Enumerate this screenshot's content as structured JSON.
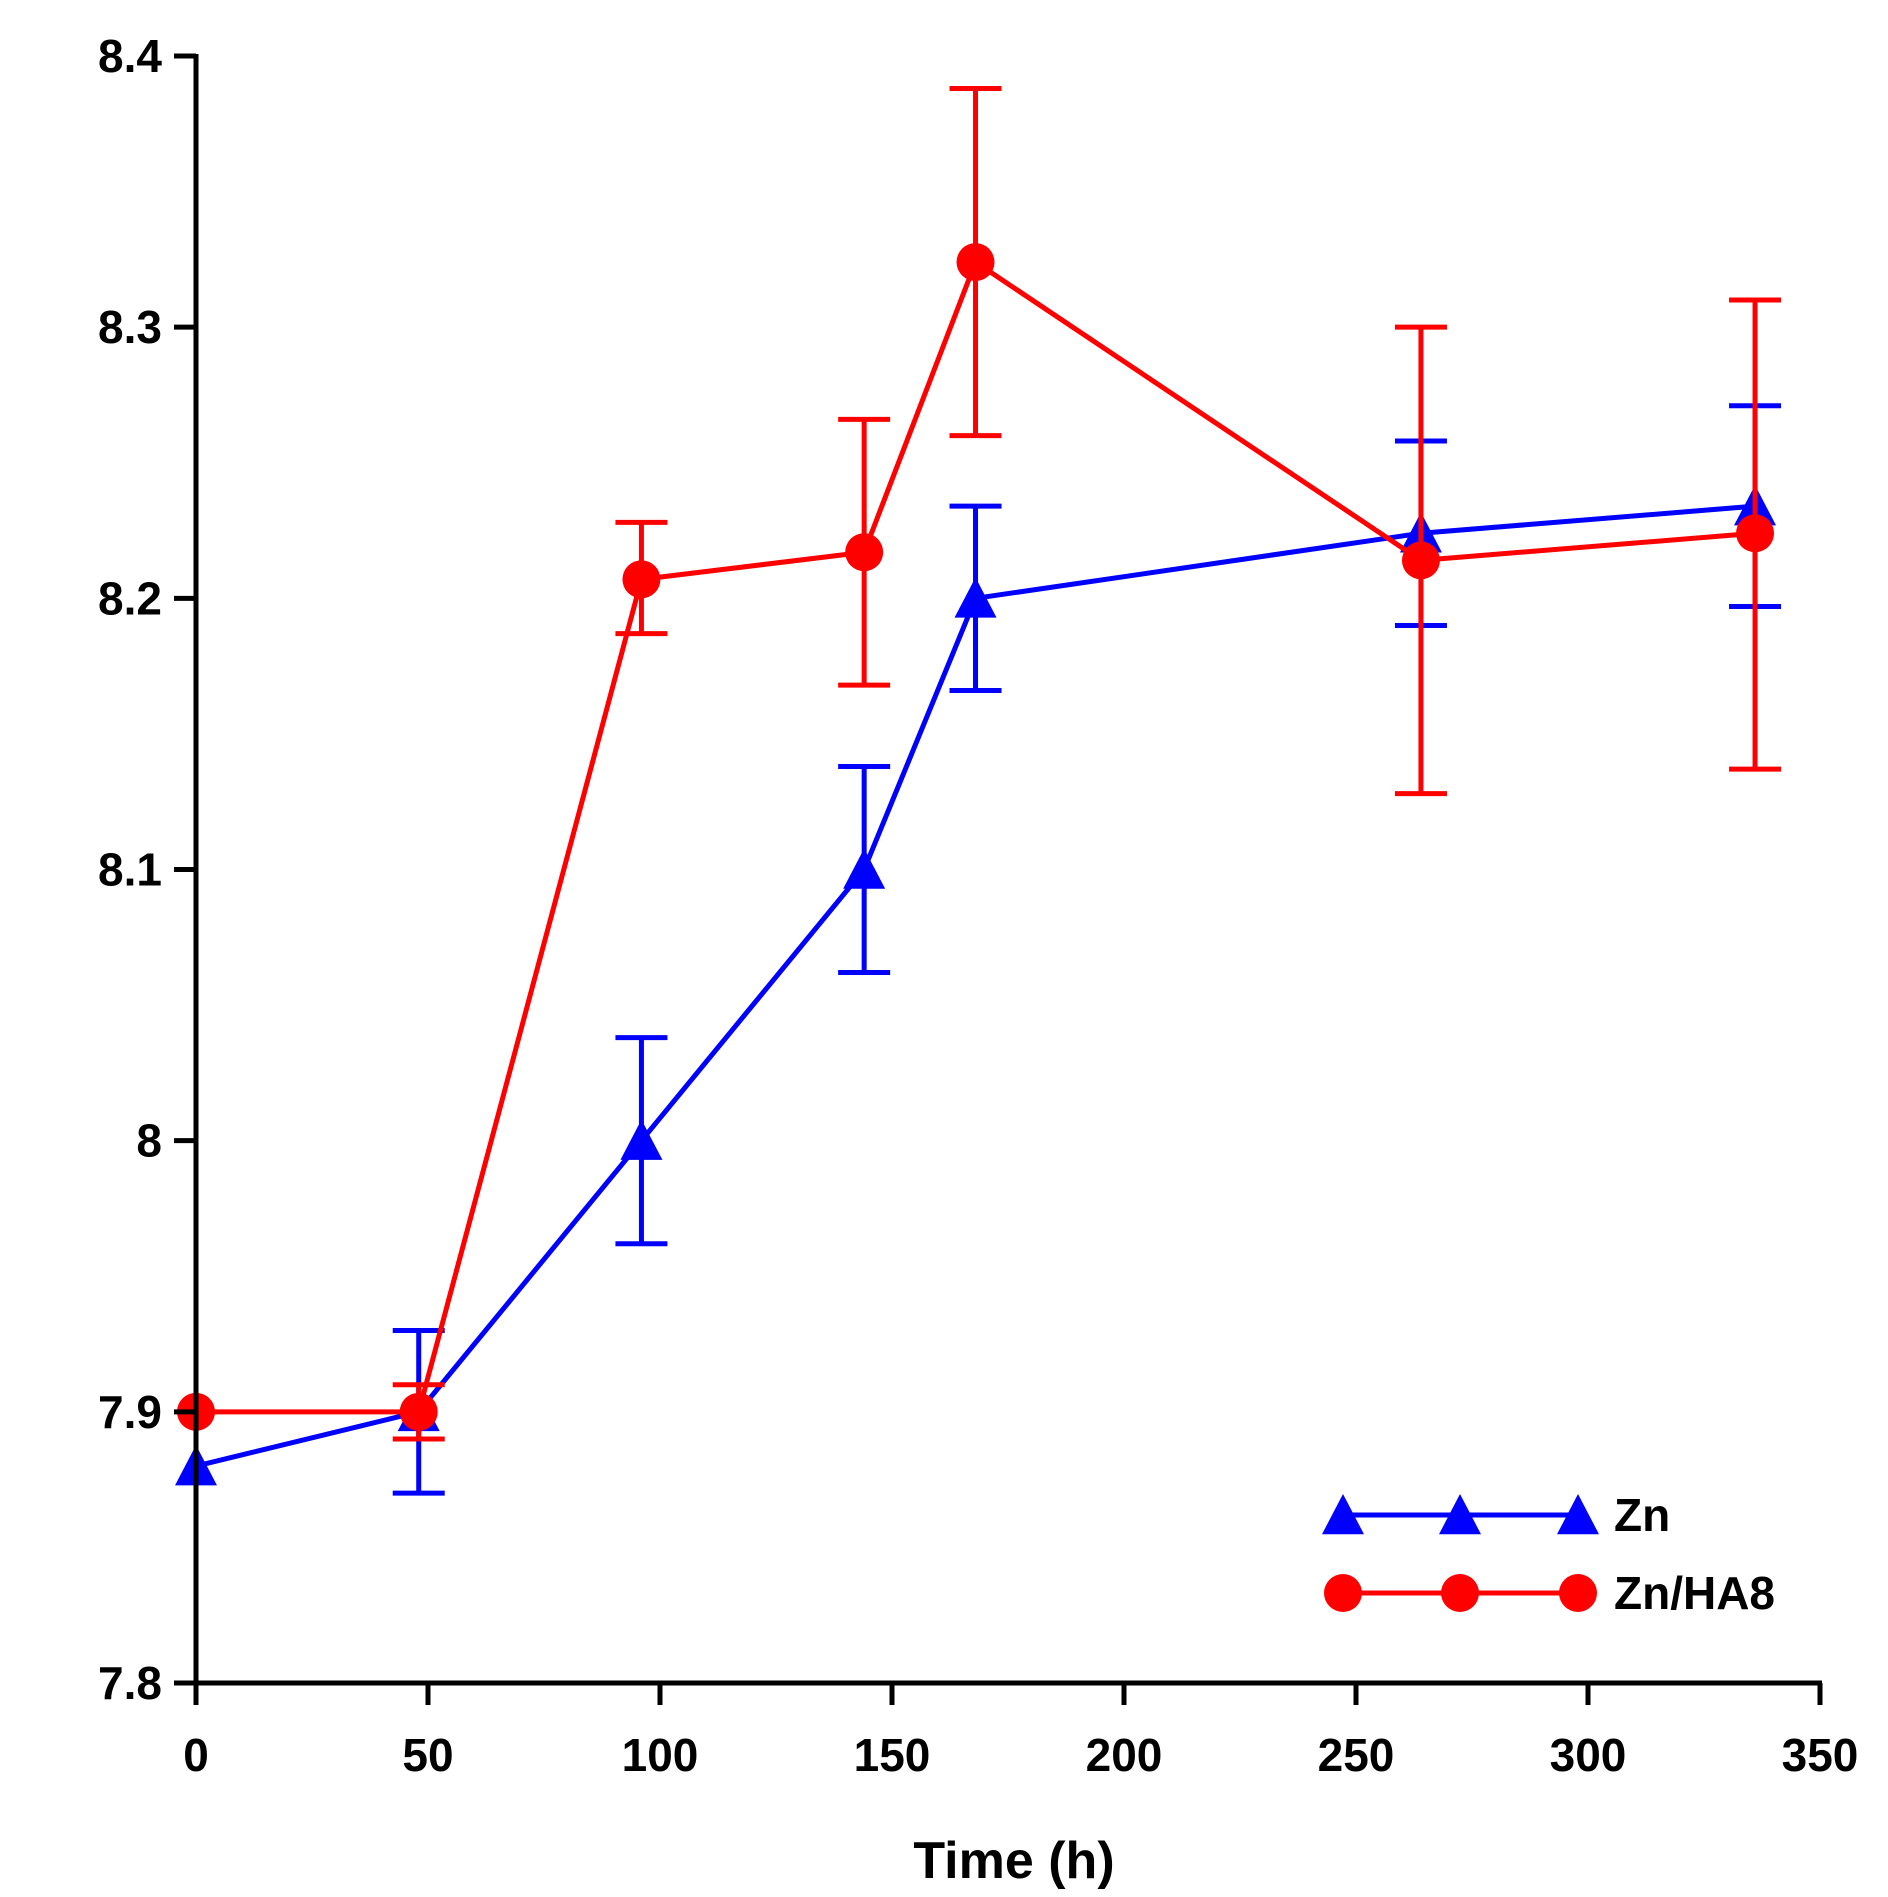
{
  "chart_data": {
    "type": "line",
    "title": "",
    "xlabel": "Time (h)",
    "ylabel": "",
    "xlim": [
      0,
      350
    ],
    "ylim": [
      7.8,
      8.4
    ],
    "xticks": [
      0,
      50,
      100,
      150,
      200,
      250,
      300,
      350
    ],
    "yticks": [
      7.8,
      7.9,
      8.0,
      8.1,
      8.2,
      8.3,
      8.4
    ],
    "xtick_labels": [
      "0",
      "50",
      "100",
      "150",
      "200",
      "250",
      "300",
      "350"
    ],
    "ytick_labels": [
      "7.8",
      "7.9",
      "8",
      "8.1",
      "8.2",
      "8.3",
      "8.4"
    ],
    "grid": false,
    "legend_position": "bottom-right",
    "series": [
      {
        "name": "Zn",
        "color": "#0000ff",
        "marker": "triangle",
        "x": [
          0,
          48,
          96,
          144,
          168,
          264,
          336
        ],
        "y": [
          7.88,
          7.9,
          8.0,
          8.1,
          8.2,
          8.224,
          8.234
        ],
        "err_low": [
          7.88,
          7.87,
          7.962,
          8.062,
          8.166,
          8.19,
          8.197
        ],
        "err_high": [
          7.88,
          7.93,
          8.038,
          8.138,
          8.234,
          8.258,
          8.271
        ]
      },
      {
        "name": "Zn/HA8",
        "color": "#ff0000",
        "marker": "circle",
        "x": [
          0,
          48,
          96,
          144,
          168,
          264,
          336
        ],
        "y": [
          7.9,
          7.9,
          8.207,
          8.217,
          8.324,
          8.214,
          8.224
        ],
        "err_low": [
          7.9,
          7.89,
          8.187,
          8.168,
          8.26,
          8.128,
          8.137
        ],
        "err_high": [
          7.9,
          7.91,
          8.228,
          8.266,
          8.388,
          8.3,
          8.31
        ]
      }
    ]
  }
}
